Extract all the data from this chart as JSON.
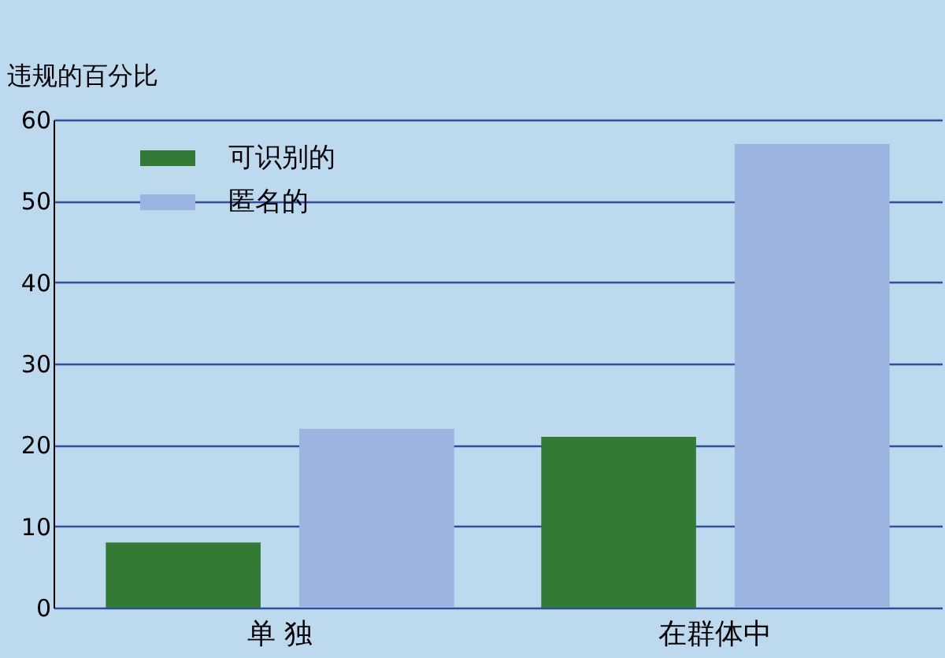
{
  "chart_data": {
    "type": "bar",
    "ylabel": "违规的百分比",
    "categories": [
      "单 独",
      "在群体中"
    ],
    "series": [
      {
        "name": "可识别的",
        "color": "#337a35",
        "values": [
          8,
          21
        ]
      },
      {
        "name": "匿名的",
        "color": "#9db3e0",
        "values": [
          22,
          57
        ]
      }
    ],
    "ylim": [
      0,
      60
    ],
    "yticks": [
      0,
      10,
      20,
      30,
      40,
      50,
      60
    ],
    "grid": "y",
    "legend": "top left"
  }
}
